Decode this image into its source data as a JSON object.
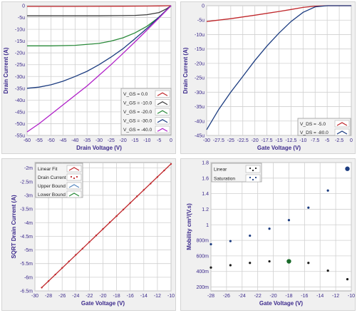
{
  "chart_data": [
    {
      "type": "line",
      "xlabel": "Drain Voltage (V)",
      "ylabel": "Drain Current (A)",
      "xlim": [
        -60,
        0
      ],
      "ylim": [
        -55,
        0
      ],
      "xticks": [
        -60,
        -55,
        -50,
        -45,
        -40,
        -35,
        -30,
        -25,
        -20,
        -15,
        -10,
        -5,
        0
      ],
      "yticks": [
        0,
        -5,
        -10,
        -15,
        -20,
        -25,
        -30,
        -35,
        -40,
        -45,
        -50,
        -55
      ],
      "xtick_labels": [
        "-60",
        "-55",
        "-50",
        "-45",
        "-40",
        "-35",
        "-30",
        "-25",
        "-20",
        "-15",
        "-10",
        "-5",
        "0"
      ],
      "ytick_labels": [
        "0",
        "-5u",
        "-10u",
        "-15u",
        "-20u",
        "-25u",
        "-30u",
        "-35u",
        "-40u",
        "-45u",
        "-50u",
        "-55u"
      ],
      "grid": true,
      "legend": "bottom-right",
      "series": [
        {
          "name": "V_GS = 0.0",
          "color": "#c0282c",
          "x": [
            -60,
            -40,
            -20,
            -10,
            -5,
            0
          ],
          "y": [
            -0.3,
            -0.3,
            -0.2,
            -0.15,
            -0.1,
            0
          ]
        },
        {
          "name": "V_GS = -10.0",
          "color": "#3a3a3a",
          "x": [
            -60,
            -40,
            -30,
            -20,
            -15,
            -10,
            -5,
            -2,
            0
          ],
          "y": [
            -4.3,
            -4.3,
            -4.3,
            -4.2,
            -4.1,
            -3.8,
            -2.9,
            -1.4,
            0
          ]
        },
        {
          "name": "V_GS = -20.0",
          "color": "#2a8a3a",
          "x": [
            -60,
            -50,
            -40,
            -30,
            -25,
            -20,
            -15,
            -10,
            -5,
            -2,
            0
          ],
          "y": [
            -17.0,
            -17.0,
            -16.8,
            -16.0,
            -15.0,
            -13.6,
            -11.5,
            -8.7,
            -4.9,
            -2.0,
            0
          ]
        },
        {
          "name": "V_GS = -30.0",
          "color": "#1c3c80",
          "x": [
            -60,
            -55,
            -50,
            -45,
            -40,
            -35,
            -30,
            -25,
            -20,
            -15,
            -10,
            -5,
            0
          ],
          "y": [
            -35.0,
            -34.5,
            -33.5,
            -32.0,
            -30.0,
            -27.8,
            -25.0,
            -21.8,
            -18.2,
            -14.0,
            -9.6,
            -4.8,
            0
          ]
        },
        {
          "name": "V_GS = -40.0",
          "color": "#b020c8",
          "x": [
            -60,
            -55,
            -50,
            -45,
            -40,
            -35,
            -30,
            -25,
            -20,
            -15,
            -10,
            -5,
            0
          ],
          "y": [
            -53.5,
            -50.0,
            -46.0,
            -42.0,
            -38.0,
            -34.0,
            -29.5,
            -25.0,
            -20.2,
            -15.3,
            -10.3,
            -5.2,
            0
          ]
        }
      ]
    },
    {
      "type": "line",
      "xlabel": "Gate Voltage (V)",
      "ylabel": "Drain Current (A)",
      "xlim": [
        -30,
        0
      ],
      "ylim": [
        -45,
        0
      ],
      "xticks": [
        -30,
        -27.5,
        -25,
        -22.5,
        -20,
        -17.5,
        -15,
        -12.5,
        -10,
        -7.5,
        -5,
        -2.5,
        0
      ],
      "yticks": [
        0,
        -5,
        -10,
        -15,
        -20,
        -25,
        -30,
        -35,
        -40,
        -45
      ],
      "xtick_labels": [
        "-30",
        "-27.5",
        "-25",
        "-22.5",
        "-20",
        "-17.5",
        "-15",
        "-12.5",
        "-10",
        "-7.5",
        "-5",
        "-2.5",
        "0"
      ],
      "ytick_labels": [
        "0",
        "-5u",
        "-10u",
        "-15u",
        "-20u",
        "-25u",
        "-30u",
        "-35u",
        "-40u",
        "-45u"
      ],
      "grid": true,
      "legend": "bottom-right",
      "series": [
        {
          "name": "V_DS = -5.0",
          "color": "#c0282c",
          "x": [
            -30,
            -25,
            -20,
            -15,
            -12.5,
            -10,
            -7.5,
            -5,
            -2.5,
            0
          ],
          "y": [
            -5.5,
            -4.5,
            -3.3,
            -2.0,
            -1.3,
            -0.6,
            -0.15,
            0,
            0,
            0
          ]
        },
        {
          "name": "V_DS = -80.0",
          "color": "#1c3c80",
          "x": [
            -30,
            -27.5,
            -25,
            -22.5,
            -20,
            -17.5,
            -15,
            -12.5,
            -10,
            -7.5,
            -5,
            -2.5,
            0
          ],
          "y": [
            -43.0,
            -36.0,
            -30.0,
            -24.5,
            -19.0,
            -14.0,
            -9.5,
            -5.5,
            -2.3,
            -0.4,
            0,
            0,
            0
          ]
        }
      ]
    },
    {
      "type": "line",
      "xlabel": "Gate Voltage (V)",
      "ylabel": "SQRT Drain Current (A)",
      "xlim": [
        -30,
        -10
      ],
      "ylim": [
        -6.5,
        -1.8
      ],
      "xticks": [
        -30,
        -28,
        -26,
        -24,
        -22,
        -20,
        -18,
        -16,
        -14,
        -12,
        -10
      ],
      "yticks": [
        -2,
        -2.5,
        -3,
        -3.5,
        -4,
        -4.5,
        -5,
        -5.5,
        -6,
        -6.5
      ],
      "xtick_labels": [
        "-30",
        "-28",
        "-26",
        "-24",
        "-22",
        "-20",
        "-18",
        "-16",
        "-14",
        "-12",
        "-10"
      ],
      "ytick_labels": [
        "-2m",
        "-2.5m",
        "-3m",
        "-3.5m",
        "-4m",
        "-4.5m",
        "-5m",
        "-5.5m",
        "-6m",
        "-6.5m"
      ],
      "grid": true,
      "legend": "top-left",
      "legend_entries": [
        "Linear Fit",
        "Drain Current",
        "Upper Bound",
        "Lower Bound"
      ],
      "series": [
        {
          "name": "Linear Fit",
          "color": "#c0282c",
          "x": [
            -29,
            -10
          ],
          "y": [
            -6.38,
            -1.85
          ]
        },
        {
          "name": "Drain Current",
          "color": "#c0282c",
          "x": [
            -29,
            -28,
            -27,
            -26,
            -25,
            -24,
            -23,
            -22,
            -21,
            -20,
            -19,
            -18,
            -17,
            -16,
            -15,
            -14,
            -13,
            -12,
            -11,
            -10
          ],
          "y": [
            -6.38,
            -6.14,
            -5.9,
            -5.66,
            -5.42,
            -5.18,
            -4.95,
            -4.71,
            -4.47,
            -4.23,
            -3.99,
            -3.76,
            -3.52,
            -3.28,
            -3.04,
            -2.8,
            -2.57,
            -2.33,
            -2.09,
            -1.85
          ]
        }
      ]
    },
    {
      "type": "scatter",
      "xlabel": "Gate Voltage (V)",
      "ylabel": "Mobility cm²/(V.s)",
      "xlim": [
        -28,
        -10
      ],
      "ylim": [
        0.15,
        1.8
      ],
      "xticks": [
        -28,
        -26,
        -24,
        -22,
        -20,
        -18,
        -16,
        -14,
        -12,
        -10
      ],
      "yticks": [
        1.8,
        1.6,
        1.4,
        1.2,
        1.0,
        0.8,
        0.6,
        0.4,
        0.2
      ],
      "xtick_labels": [
        "-28",
        "-26",
        "-24",
        "-22",
        "-20",
        "-18",
        "-16",
        "-14",
        "-12",
        "-10"
      ],
      "ytick_labels": [
        "1.8",
        "1.6",
        "1.4",
        "1.2",
        "1",
        "800m",
        "600m",
        "400m",
        "200m"
      ],
      "grid": true,
      "legend": "top-left",
      "series": [
        {
          "name": "Linear",
          "color": "#1c1c1c",
          "x": [
            -28,
            -25.5,
            -23,
            -20.5,
            -18,
            -15.5,
            -13,
            -10.5
          ],
          "y": [
            0.45,
            0.48,
            0.51,
            0.53,
            0.53,
            0.51,
            0.41,
            0.3
          ]
        },
        {
          "name": "Saturation",
          "color": "#1c3c80",
          "x": [
            -28,
            -25.5,
            -23,
            -20.5,
            -18,
            -15.5,
            -13,
            -10.5
          ],
          "y": [
            0.75,
            0.79,
            0.86,
            0.95,
            1.06,
            1.22,
            1.44,
            1.72
          ]
        }
      ],
      "highlight": [
        {
          "x": -18,
          "y": 0.53,
          "color": "#1a6a2a"
        },
        {
          "x": -10.5,
          "y": 1.72,
          "color": "#1c3c80"
        }
      ]
    }
  ]
}
